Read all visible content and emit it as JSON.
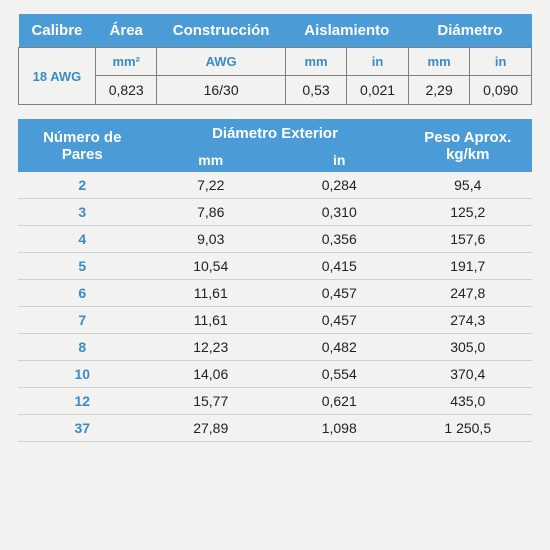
{
  "colors": {
    "header_bg": "#4a9bd6",
    "header_text": "#ffffff",
    "accent_text": "#3a8cc9",
    "cell_border": "#808080",
    "row_border": "#cfcfcf",
    "body_text": "#222222",
    "page_bg": "#f2f2f0"
  },
  "fontsizes": {
    "header": 15,
    "sub": 13,
    "data": 14
  },
  "table1": {
    "headers": {
      "calibre": "Calibre",
      "area": "Área",
      "construccion": "Construcción",
      "aislamiento": "Aislamiento",
      "diametro": "Diámetro"
    },
    "sub": {
      "mm2": "mm²",
      "awg": "AWG",
      "mm": "mm",
      "in": "in"
    },
    "row_label": "18 AWG",
    "data": {
      "area_mm2": "0,823",
      "constr_awg": "16/30",
      "ais_mm": "0,53",
      "ais_in": "0,021",
      "dia_mm": "2,29",
      "dia_in": "0,090"
    },
    "col_widths_pct": [
      15,
      12,
      25,
      12,
      12,
      12,
      12
    ]
  },
  "table2": {
    "headers": {
      "pares": "Número de Pares",
      "dia_ext": "Diámetro Exterior",
      "peso": "Peso Aprox. kg/km"
    },
    "sub": {
      "mm": "mm",
      "in": "in"
    },
    "col_widths_pct": [
      25,
      25,
      25,
      25
    ],
    "rows": [
      {
        "pares": "2",
        "mm": "7,22",
        "in": "0,284",
        "peso": "95,4"
      },
      {
        "pares": "3",
        "mm": "7,86",
        "in": "0,310",
        "peso": "125,2"
      },
      {
        "pares": "4",
        "mm": "9,03",
        "in": "0,356",
        "peso": "157,6"
      },
      {
        "pares": "5",
        "mm": "10,54",
        "in": "0,415",
        "peso": "191,7"
      },
      {
        "pares": "6",
        "mm": "11,61",
        "in": "0,457",
        "peso": "247,8"
      },
      {
        "pares": "7",
        "mm": "11,61",
        "in": "0,457",
        "peso": "274,3"
      },
      {
        "pares": "8",
        "mm": "12,23",
        "in": "0,482",
        "peso": "305,0"
      },
      {
        "pares": "10",
        "mm": "14,06",
        "in": "0,554",
        "peso": "370,4"
      },
      {
        "pares": "12",
        "mm": "15,77",
        "in": "0,621",
        "peso": "435,0"
      },
      {
        "pares": "37",
        "mm": "27,89",
        "in": "1,098",
        "peso": "1 250,5"
      }
    ]
  }
}
